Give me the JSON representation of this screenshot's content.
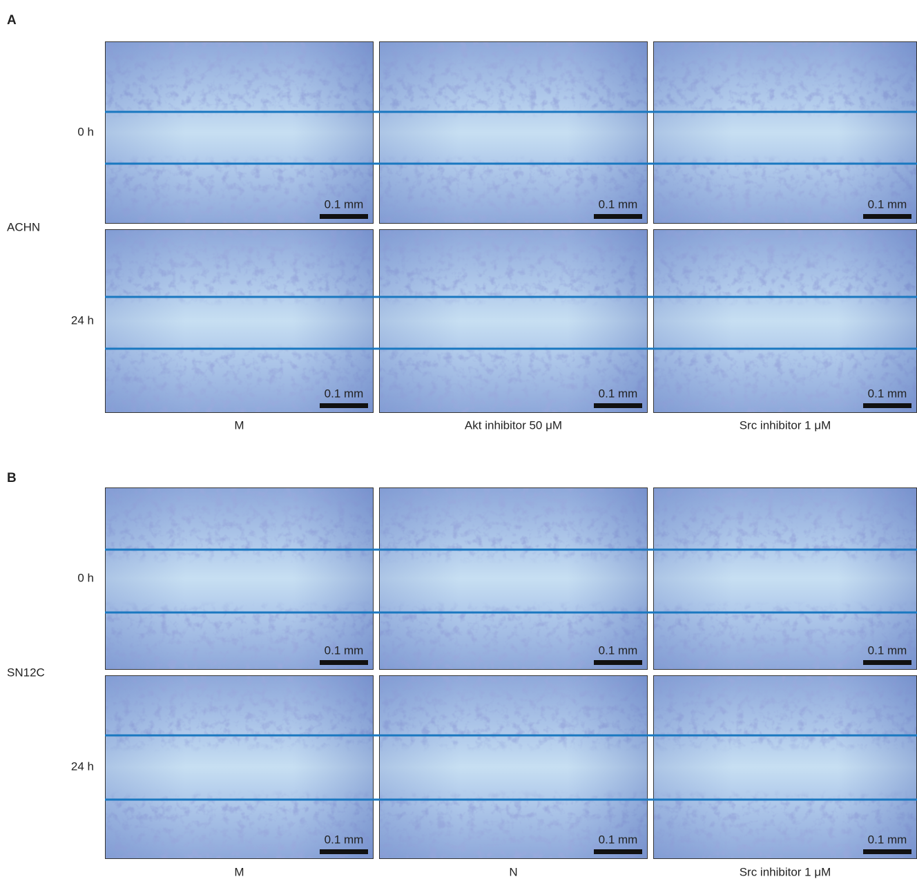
{
  "panels": [
    {
      "label": "A",
      "cell_line": "ACHN",
      "rows": [
        "0 h",
        "24 h"
      ],
      "columns": [
        "M",
        "Akt inhibitor 50 μM",
        "Src inhibitor 1 μM"
      ],
      "scale_bar": "0.1 mm"
    },
    {
      "label": "B",
      "cell_line": "SN12C",
      "rows": [
        "0 h",
        "24 h"
      ],
      "columns": [
        "M",
        "N",
        "Src inhibitor 1 μM"
      ],
      "scale_bar": "0.1 mm"
    }
  ]
}
